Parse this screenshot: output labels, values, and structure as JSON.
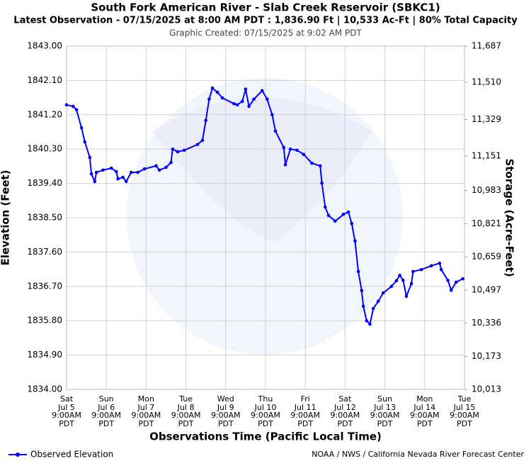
{
  "chart_data": {
    "type": "line",
    "title": "South Fork American River - Slab Creek Reservoir (SBKC1)",
    "subtitle": "Latest Observation - 07/15/2025 at 8:00 AM PDT : 1,836.90 Ft | 10,533 Ac-Ft | 80% Total Capacity",
    "created": "Graphic Created: 07/15/2025 at 9:02 AM PDT",
    "xlabel": "Observations Time (Pacific Local Time)",
    "ylabel": "Elevation (Feet)",
    "y2label": "Storage (Acre-Feet)",
    "footer": "NOAA / NWS / California Nevada River Forecast Center",
    "legend": "lower left",
    "grid": true,
    "x": [
      "2025-07-05 09:00",
      "2025-07-05 13:00",
      "2025-07-05 15:00",
      "2025-07-05 18:00",
      "2025-07-05 20:00",
      "2025-07-05 23:00",
      "2025-07-06 00:00",
      "2025-07-06 02:00",
      "2025-07-06 03:00",
      "2025-07-06 07:00",
      "2025-07-06 12:00",
      "2025-07-06 15:00",
      "2025-07-06 16:00",
      "2025-07-06 19:00",
      "2025-07-06 21:00",
      "2025-07-07 00:00",
      "2025-07-07 04:00",
      "2025-07-07 08:00",
      "2025-07-07 15:00",
      "2025-07-07 17:00",
      "2025-07-07 21:00",
      "2025-07-08 00:00",
      "2025-07-08 01:00",
      "2025-07-08 04:00",
      "2025-07-08 08:00",
      "2025-07-08 16:00",
      "2025-07-08 19:00",
      "2025-07-08 21:00",
      "2025-07-08 23:00",
      "2025-07-09 01:00",
      "2025-07-09 04:00",
      "2025-07-09 07:00",
      "2025-07-09 14:00",
      "2025-07-09 16:00",
      "2025-07-09 19:00",
      "2025-07-09 21:00",
      "2025-07-09 23:00",
      "2025-07-10 02:00",
      "2025-07-10 07:00",
      "2025-07-10 10:00",
      "2025-07-10 13:00",
      "2025-07-10 15:00",
      "2025-07-10 20:00",
      "2025-07-10 21:00",
      "2025-07-11 00:00",
      "2025-07-11 04:00",
      "2025-07-11 08:00",
      "2025-07-11 13:00",
      "2025-07-11 18:00",
      "2025-07-11 19:00",
      "2025-07-11 21:00",
      "2025-07-11 23:00",
      "2025-07-12 03:00",
      "2025-07-12 08:00",
      "2025-07-12 11:00",
      "2025-07-12 13:00",
      "2025-07-12 15:00",
      "2025-07-12 17:00",
      "2025-07-12 19:00",
      "2025-07-12 20:00",
      "2025-07-12 22:00",
      "2025-07-13 00:00",
      "2025-07-13 02:00",
      "2025-07-13 05:00",
      "2025-07-13 08:00",
      "2025-07-13 13:00",
      "2025-07-13 16:00",
      "2025-07-13 18:00",
      "2025-07-13 20:00",
      "2025-07-13 22:00",
      "2025-07-14 01:00",
      "2025-07-14 02:00",
      "2025-07-14 07:00",
      "2025-07-14 13:00",
      "2025-07-14 18:00",
      "2025-07-14 19:00",
      "2025-07-14 23:00",
      "2025-07-15 01:00",
      "2025-07-15 04:00",
      "2025-07-15 08:00"
    ],
    "series": [
      {
        "name": "Observed Elevation",
        "color": "#0000ff",
        "values": [
          1841.46,
          1841.42,
          1841.33,
          1840.86,
          1840.49,
          1840.08,
          1839.65,
          1839.45,
          1839.69,
          1839.75,
          1839.8,
          1839.71,
          1839.52,
          1839.56,
          1839.45,
          1839.69,
          1839.69,
          1839.78,
          1839.86,
          1839.75,
          1839.82,
          1839.95,
          1840.3,
          1840.23,
          1840.27,
          1840.42,
          1840.53,
          1841.05,
          1841.61,
          1841.9,
          1841.79,
          1841.64,
          1841.49,
          1841.46,
          1841.55,
          1841.87,
          1841.42,
          1841.61,
          1841.83,
          1841.61,
          1841.2,
          1840.77,
          1840.34,
          1839.89,
          1840.3,
          1840.27,
          1840.16,
          1839.93,
          1839.86,
          1839.41,
          1838.78,
          1838.56,
          1838.41,
          1838.59,
          1838.65,
          1838.35,
          1837.89,
          1837.09,
          1836.59,
          1836.18,
          1835.8,
          1835.71,
          1836.12,
          1836.31,
          1836.53,
          1836.7,
          1836.85,
          1836.99,
          1836.86,
          1836.44,
          1836.77,
          1837.09,
          1837.14,
          1837.24,
          1837.31,
          1837.14,
          1836.86,
          1836.6,
          1836.81,
          1836.9
        ]
      }
    ],
    "xlim": [
      "2025-07-05 09:00",
      "2025-07-15 09:00"
    ],
    "xticks": [
      {
        "value": "2025-07-05 09:00",
        "label": "Sat\nJul 5\n9:00AM\nPDT"
      },
      {
        "value": "2025-07-06 09:00",
        "label": "Sun\nJul 6\n9:00AM\nPDT"
      },
      {
        "value": "2025-07-07 09:00",
        "label": "Mon\nJul 7\n9:00AM\nPDT"
      },
      {
        "value": "2025-07-08 09:00",
        "label": "Tue\nJul 8\n9:00AM\nPDT"
      },
      {
        "value": "2025-07-09 09:00",
        "label": "Wed\nJul 9\n9:00AM\nPDT"
      },
      {
        "value": "2025-07-10 09:00",
        "label": "Thu\nJul 10\n9:00AM\nPDT"
      },
      {
        "value": "2025-07-11 09:00",
        "label": "Fri\nJul 11\n9:00AM\nPDT"
      },
      {
        "value": "2025-07-12 09:00",
        "label": "Sat\nJul 12\n9:00AM\nPDT"
      },
      {
        "value": "2025-07-13 09:00",
        "label": "Sun\nJul 13\n9:00AM\nPDT"
      },
      {
        "value": "2025-07-14 09:00",
        "label": "Mon\nJul 14\n9:00AM\nPDT"
      },
      {
        "value": "2025-07-15 09:00",
        "label": "Tue\nJul 15\n9:00AM\nPDT"
      }
    ],
    "ylim": [
      1834,
      1843
    ],
    "yticks": [
      {
        "value": 1834,
        "label": "1834.00"
      },
      {
        "value": 1834.9,
        "label": "1834.90"
      },
      {
        "value": 1835.8,
        "label": "1835.80"
      },
      {
        "value": 1836.7,
        "label": "1836.70"
      },
      {
        "value": 1837.6,
        "label": "1837.60"
      },
      {
        "value": 1838.5,
        "label": "1838.50"
      },
      {
        "value": 1839.4,
        "label": "1839.40"
      },
      {
        "value": 1840.3,
        "label": "1840.30"
      },
      {
        "value": 1841.2,
        "label": "1841.20"
      },
      {
        "value": 1842.1,
        "label": "1842.10"
      },
      {
        "value": 1843,
        "label": "1843.00"
      }
    ],
    "y2lim": [
      10013,
      11687
    ],
    "y2ticks": [
      {
        "value": 10013,
        "label": "10,013"
      },
      {
        "value": 10173,
        "label": "10,173"
      },
      {
        "value": 10336,
        "label": "10,336"
      },
      {
        "value": 10497,
        "label": "10,497"
      },
      {
        "value": 10659,
        "label": "10,659"
      },
      {
        "value": 10821,
        "label": "10,821"
      },
      {
        "value": 10983,
        "label": "10,983"
      },
      {
        "value": 11151,
        "label": "11,151"
      },
      {
        "value": 11329,
        "label": "11,329"
      },
      {
        "value": 11510,
        "label": "11,510"
      },
      {
        "value": 11687,
        "label": "11,687"
      }
    ]
  }
}
